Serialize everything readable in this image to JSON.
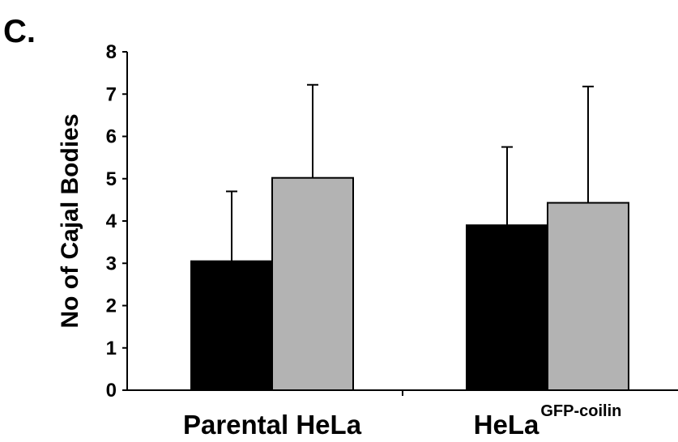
{
  "panel_label": "C.",
  "chart_data": {
    "type": "bar",
    "categories": [
      {
        "main": "Parental HeLa",
        "sup": ""
      },
      {
        "main": "HeLa",
        "sup": "GFP-coilin"
      }
    ],
    "series": [
      {
        "color": "#000000",
        "values": [
          3.05,
          3.9
        ],
        "errors": [
          1.65,
          1.85
        ]
      },
      {
        "color": "#b3b3b3",
        "values": [
          5.02,
          4.43
        ],
        "errors": [
          2.2,
          2.75
        ]
      }
    ],
    "ylabel": "No of Cajal Bodies",
    "ylim": [
      0,
      8
    ],
    "yticks": [
      "0",
      "1",
      "2",
      "3",
      "4",
      "5",
      "6",
      "7",
      "8"
    ],
    "grid": false
  }
}
